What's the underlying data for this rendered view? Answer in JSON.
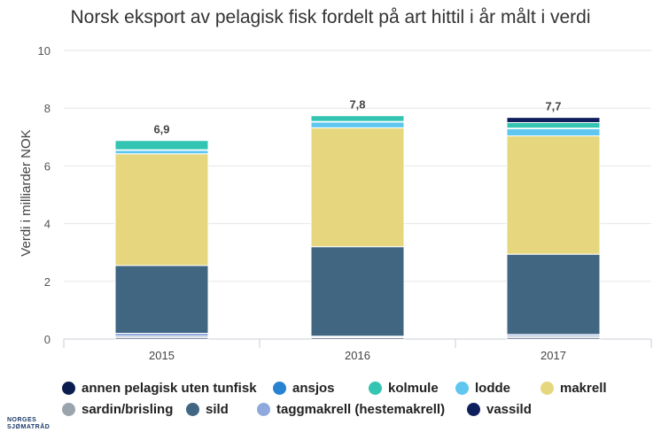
{
  "chart_data": {
    "type": "bar",
    "stacked": true,
    "title": "Norsk eksport av pelagisk fisk fordelt på art hittil i år målt i verdi",
    "ylabel": "Verdi i milliarder NOK",
    "xlabel": "",
    "ylim": [
      0,
      10
    ],
    "yticks": [
      "0",
      "2",
      "4",
      "6",
      "8",
      "10"
    ],
    "grid": true,
    "legend_position": "bottom",
    "categories": [
      "2015",
      "2016",
      "2017"
    ],
    "totals_labels": [
      "6,9",
      "7,8",
      "7,7"
    ],
    "series": [
      {
        "name": "annen pelagisk uten tunfisk",
        "color": "#0b1d4f",
        "values": [
          0.05,
          0.05,
          0.05
        ]
      },
      {
        "name": "sardin/brisling",
        "color": "#9aa4ad",
        "values": [
          0.05,
          0.02,
          0.05
        ]
      },
      {
        "name": "taggmakrell (hestemakrell)",
        "color": "#8fa9dc",
        "values": [
          0.1,
          0.03,
          0.06
        ]
      },
      {
        "name": "sild",
        "color": "#406682",
        "values": [
          2.35,
          3.1,
          2.78
        ]
      },
      {
        "name": "makrell",
        "color": "#e6d77f",
        "values": [
          3.87,
          4.12,
          4.1
        ]
      },
      {
        "name": "lodde",
        "color": "#5fc7ef",
        "values": [
          0.12,
          0.2,
          0.25
        ]
      },
      {
        "name": "ansjos",
        "color": "#2783d1",
        "values": [
          0.02,
          0.02,
          0.02
        ]
      },
      {
        "name": "kolmule",
        "color": "#33c5b2",
        "values": [
          0.32,
          0.2,
          0.19
        ]
      },
      {
        "name": "vassild",
        "color": "#0f1f5c",
        "values": [
          0.0,
          0.0,
          0.18
        ]
      }
    ]
  },
  "legend": [
    {
      "label": "annen pelagisk uten tunfisk",
      "color": "#0b1d4f"
    },
    {
      "label": "ansjos",
      "color": "#2783d1"
    },
    {
      "label": "kolmule",
      "color": "#33c5b2"
    },
    {
      "label": "lodde",
      "color": "#5fc7ef"
    },
    {
      "label": "makrell",
      "color": "#e6d77f"
    },
    {
      "label": "sardin/brisling",
      "color": "#9aa4ad"
    },
    {
      "label": "sild",
      "color": "#406682"
    },
    {
      "label": "taggmakrell (hestemakrell)",
      "color": "#8fa9dc"
    },
    {
      "label": "vassild",
      "color": "#0f1f5c"
    }
  ],
  "logo": {
    "line1": "NORGES",
    "line2": "SJØMATRÅD"
  }
}
